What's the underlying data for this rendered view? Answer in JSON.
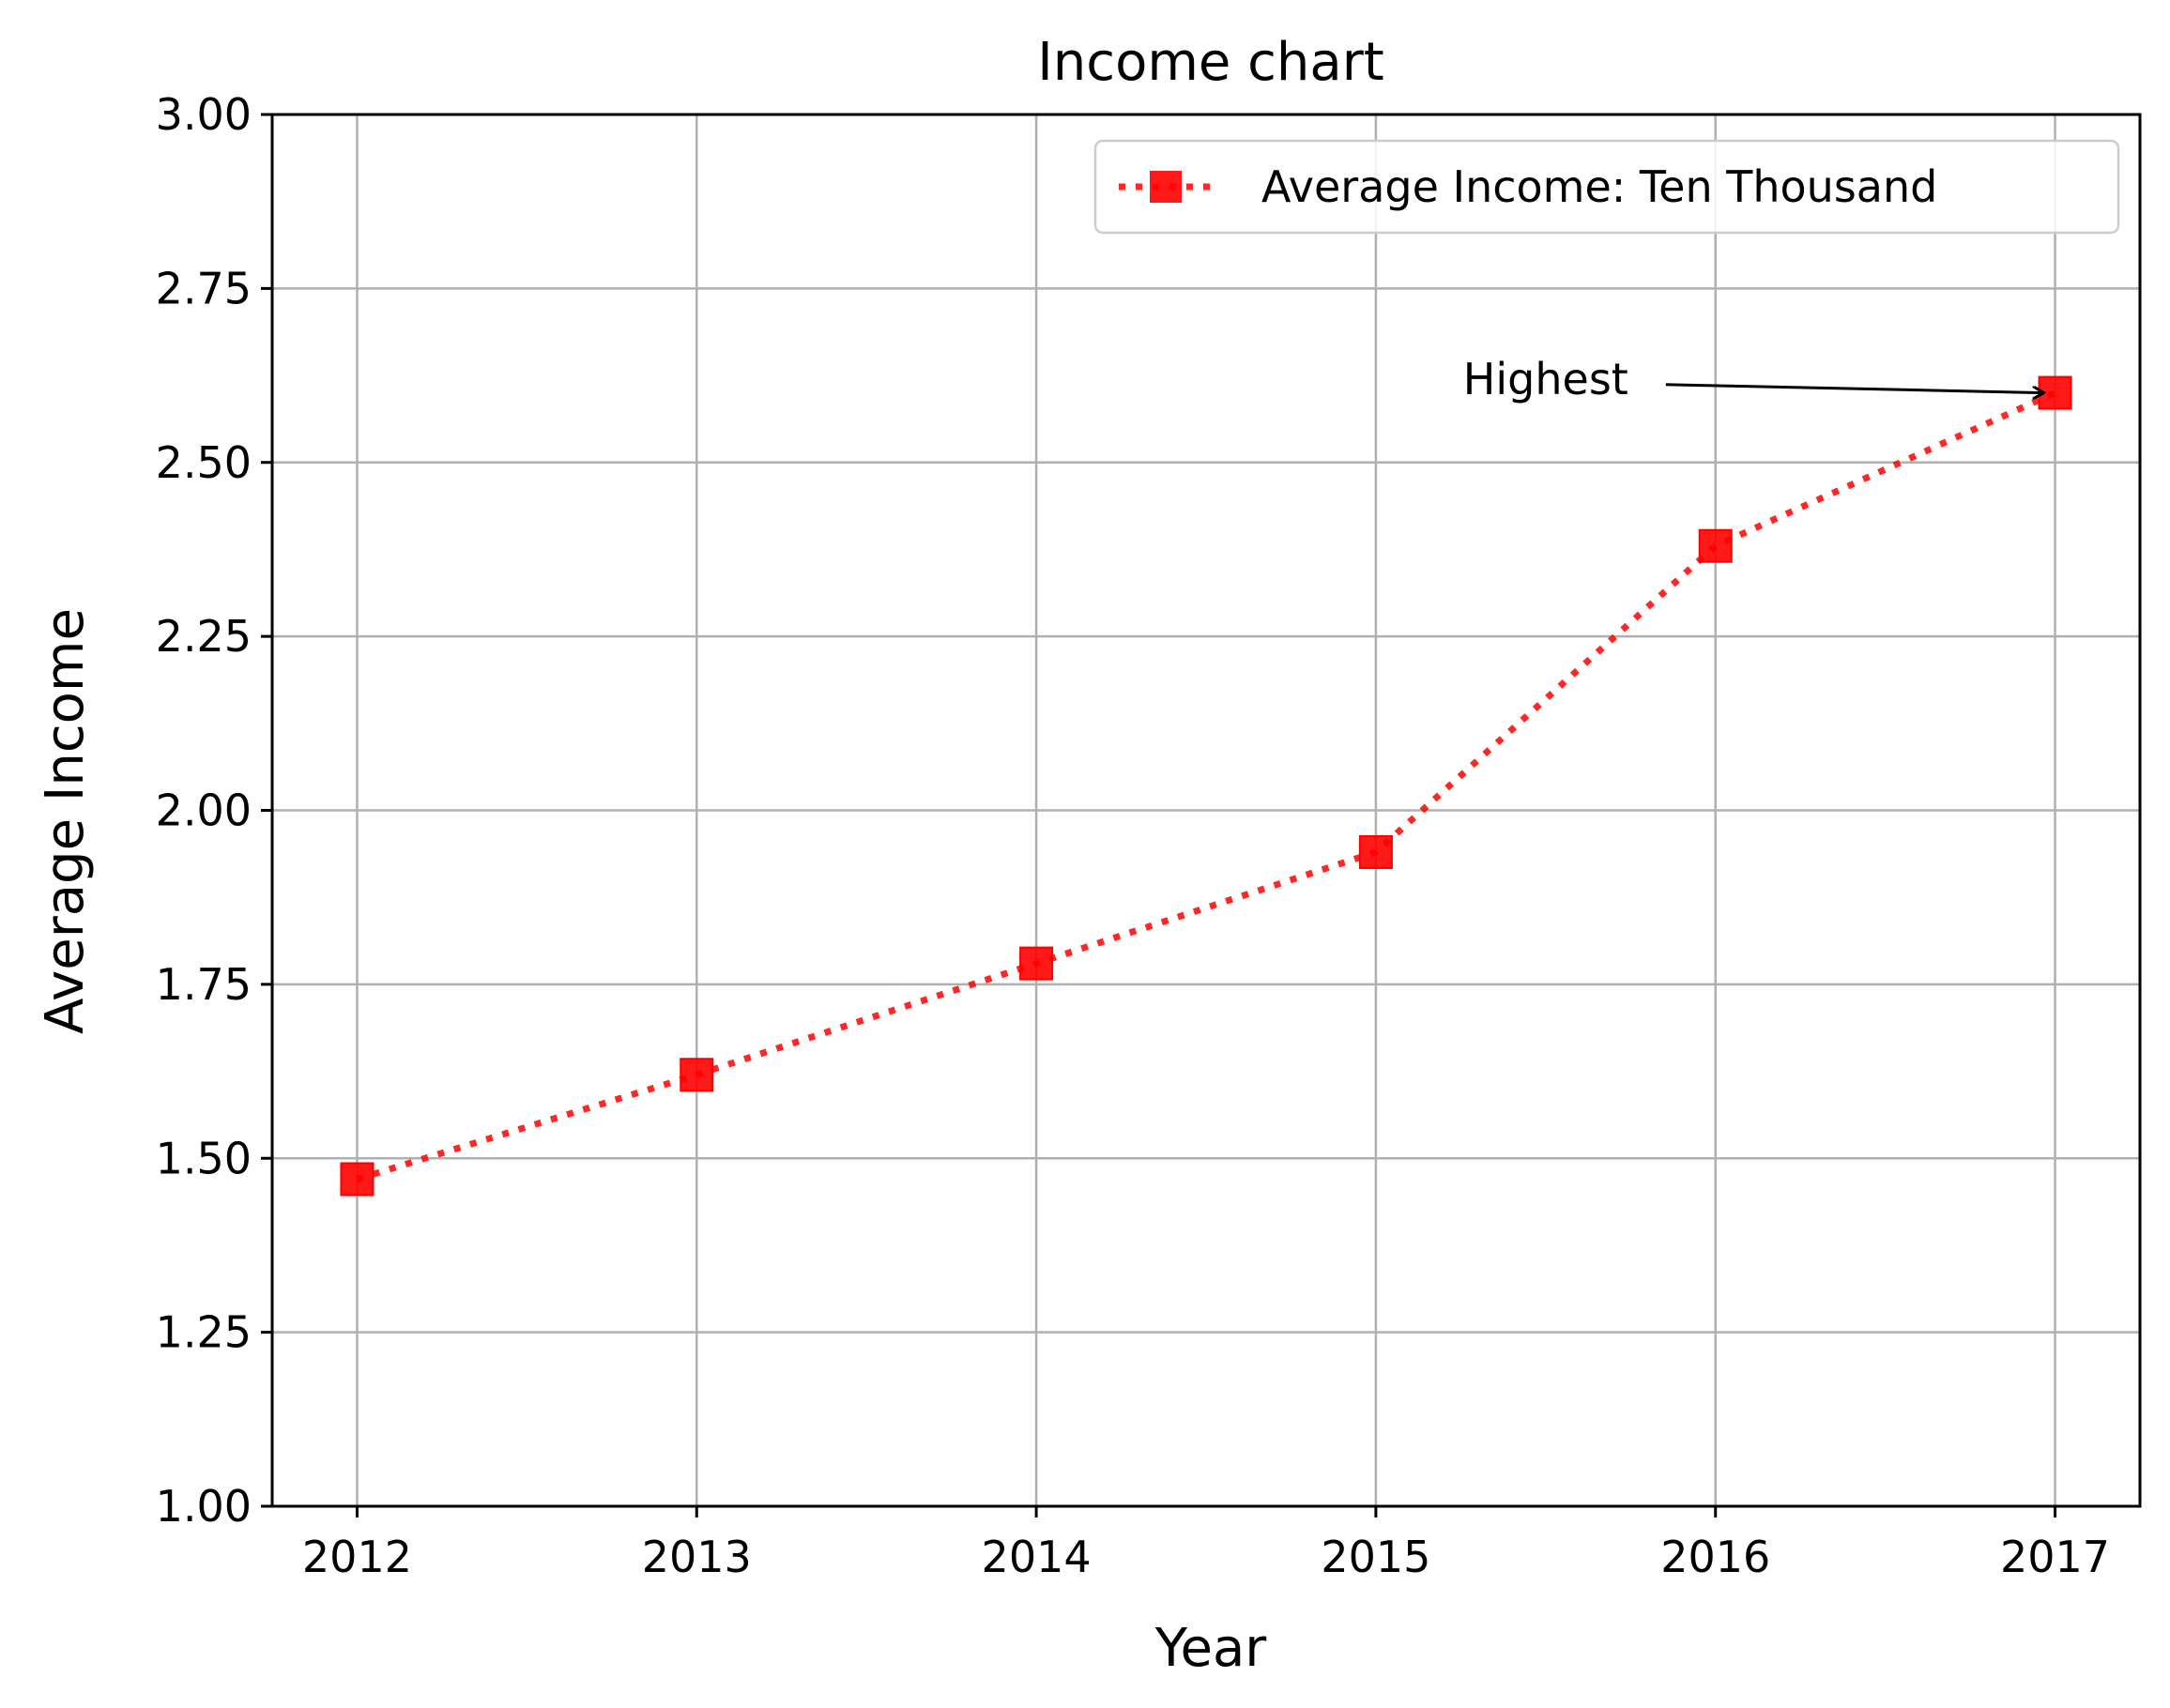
{
  "chart_data": {
    "type": "line",
    "title": "Income chart",
    "xlabel": "Year",
    "ylabel": "Average Income",
    "x": [
      2012,
      2013,
      2014,
      2015,
      2016,
      2017
    ],
    "series": [
      {
        "name": "Average Income: Ten Thousand",
        "values": [
          1.47,
          1.62,
          1.78,
          1.94,
          2.38,
          2.6
        ],
        "color": "#ff0000",
        "line_style": "dotted",
        "marker": "square"
      }
    ],
    "xlim": [
      2011.75,
      2017.25
    ],
    "ylim": [
      1.0,
      3.0
    ],
    "x_ticks": [
      "2012",
      "2013",
      "2014",
      "2015",
      "2016",
      "2017"
    ],
    "y_ticks": [
      "1.00",
      "1.25",
      "1.50",
      "1.75",
      "2.00",
      "2.25",
      "2.50",
      "2.75",
      "3.00"
    ],
    "grid": true,
    "legend_position": "top-right",
    "annotations": [
      {
        "text": "Highest",
        "x": 2017,
        "y": 2.6,
        "text_x": 2015.5,
        "text_y": 2.62
      }
    ]
  }
}
